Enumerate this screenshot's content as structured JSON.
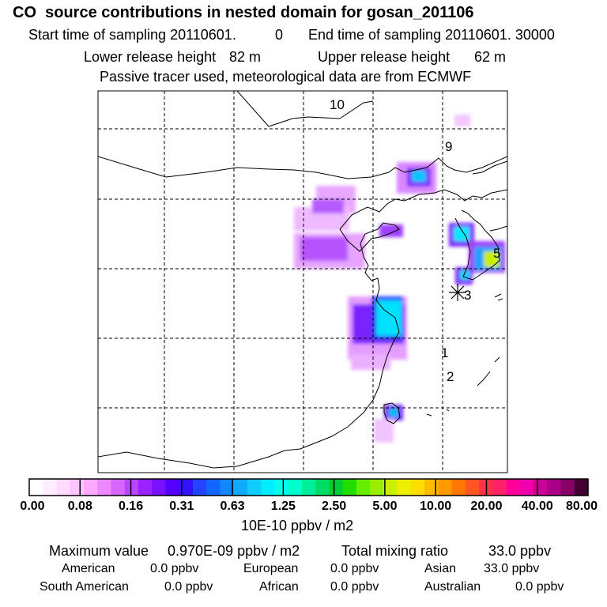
{
  "header": {
    "title": "CO  source contributions in nested domain for gosan_201106",
    "start_label": "Start time of sampling 20110601.",
    "start_value": "0",
    "end_label": "End time of sampling 20110601. 30000",
    "lower_label": "Lower release height",
    "lower_value": "82 m",
    "upper_label": "Upper release height",
    "upper_value": "62 m",
    "note": "Passive tracer used, meteorological data are from ECMWF"
  },
  "map": {
    "markers": [
      {
        "id": "10",
        "label": "10"
      },
      {
        "id": "9",
        "label": "9"
      },
      {
        "id": "5",
        "label": "5"
      },
      {
        "id": "3",
        "label": "3"
      },
      {
        "id": "1",
        "label": "1"
      },
      {
        "id": "2",
        "label": "2"
      }
    ]
  },
  "colorbar": {
    "colors": [
      "#ffffff",
      "#ffeeff",
      "#ffdcff",
      "#ffc4ff",
      "#ffaaff",
      "#ee88ff",
      "#d766ff",
      "#bb44ff",
      "#9922ff",
      "#7711ff",
      "#5500ff",
      "#3311ff",
      "#2244ff",
      "#1166ff",
      "#1188ff",
      "#11aaff",
      "#11ccff",
      "#00eeff",
      "#00ffee",
      "#00ffcc",
      "#00ee99",
      "#00dd66",
      "#00cc33",
      "#22dd00",
      "#66ee00",
      "#99ee00",
      "#ccee00",
      "#eeee00",
      "#ffdd00",
      "#ffbb00",
      "#ff9900",
      "#ff7700",
      "#ff5522",
      "#ff3344",
      "#ff2266",
      "#ff0099",
      "#ee00aa",
      "#cc0099",
      "#aa0088",
      "#880066",
      "#440033"
    ],
    "ticks": [
      "0.00",
      "0.08",
      "0.16",
      "0.31",
      "0.63",
      "1.25",
      "2.50",
      "5.00",
      "10.00",
      "20.00",
      "40.00",
      "80.00"
    ],
    "unit": "10E-10 ppbv / m2"
  },
  "footer": {
    "max_label": "Maximum value",
    "max_value": "0.970E-09 ppbv / m2",
    "total_label": "Total mixing ratio",
    "total_value": "33.0 ppbv",
    "regions": [
      {
        "name": "American",
        "value": "0.0 ppbv"
      },
      {
        "name": "European",
        "value": "0.0 ppbv"
      },
      {
        "name": "Asian",
        "value": "33.0 ppbv"
      },
      {
        "name": "South American",
        "value": "0.0 ppbv"
      },
      {
        "name": "African",
        "value": "0.0 ppbv"
      },
      {
        "name": "Australian",
        "value": "0.0 ppbv"
      }
    ]
  }
}
